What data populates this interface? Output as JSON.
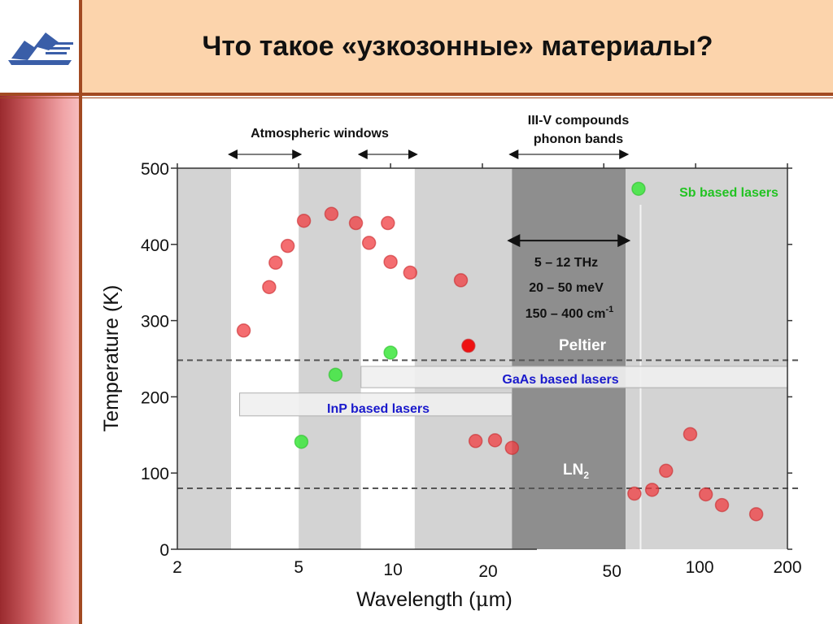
{
  "slide": {
    "title": "Что такое «узкозонные» материалы?"
  },
  "annotations": {
    "atmospheric_windows": "Atmospheric windows",
    "phonon_line1": "III-V compounds",
    "phonon_line2": "phonon bands",
    "thz": "5 – 12 THz",
    "mev": "20 – 50 meV",
    "cm_main": "150 – 400 cm",
    "cm_sup": "-1",
    "peltier": "Peltier",
    "ln2_main": "LN",
    "ln2_sub": "2",
    "sb_lasers": "Sb based lasers",
    "gaas_lasers": "GaAs based lasers",
    "inp_lasers": "InP based lasers"
  },
  "colors": {
    "red_points": "#e8474a",
    "green_points": "#4fe04f",
    "sb_label": "#22c322",
    "laser_label": "#1a1acc",
    "band_light": "#d3d3d3",
    "band_dark": "#8e8e8e",
    "band_white": "#ffffff"
  },
  "chart_data": {
    "type": "scatter",
    "x_scale": "log",
    "xlabel_main": "Wavelength (",
    "xlabel_mu": "μ",
    "xlabel_end": "m)",
    "ylabel": "Temperature (K)",
    "xlim": [
      2,
      200
    ],
    "ylim": [
      0,
      500
    ],
    "x_ticks": [
      {
        "value": 2,
        "label": "2"
      },
      {
        "value": 5,
        "label": "5"
      },
      {
        "value": 10,
        "label": "10"
      },
      {
        "value": 20,
        "label": "20"
      },
      {
        "value": 50,
        "label": "50"
      },
      {
        "value": 100,
        "label": "100"
      },
      {
        "value": 200,
        "label": "200"
      }
    ],
    "y_ticks": [
      0,
      100,
      200,
      300,
      400,
      500
    ],
    "bands": [
      {
        "from": 2,
        "to": 3,
        "fill": "light"
      },
      {
        "from": 3,
        "to": 5,
        "fill": "white"
      },
      {
        "from": 5,
        "to": 8,
        "fill": "light"
      },
      {
        "from": 8,
        "to": 12,
        "fill": "white"
      },
      {
        "from": 12,
        "to": 25,
        "fill": "light"
      },
      {
        "from": 25,
        "to": 59,
        "fill": "dark"
      },
      {
        "from": 59,
        "to": 200,
        "fill": "light"
      }
    ],
    "reference_lines": [
      {
        "name": "Peltier",
        "y": 248
      },
      {
        "name": "LN2",
        "y": 80
      }
    ],
    "ranges": [
      {
        "name": "atmospheric-window-1",
        "from": 3,
        "to": 5,
        "y": 518
      },
      {
        "name": "atmospheric-window-2",
        "from": 8,
        "to": 12,
        "y": 518
      },
      {
        "name": "phonon-bands",
        "from": 25,
        "to": 59,
        "y": 518
      },
      {
        "name": "thz-range",
        "from": 25,
        "to": 59,
        "y": 405
      }
    ],
    "shaded_boxes": [
      {
        "name": "gaas-box",
        "x_from": 8,
        "x_to": 200,
        "y_from": 212,
        "y_to": 240
      },
      {
        "name": "inp-box",
        "x_from": 3.2,
        "x_to": 25,
        "y_from": 175,
        "y_to": 205
      }
    ],
    "series": [
      {
        "color": "red",
        "points": [
          {
            "x": 3.3,
            "y": 287
          },
          {
            "x": 4.0,
            "y": 344
          },
          {
            "x": 4.2,
            "y": 376
          },
          {
            "x": 4.6,
            "y": 398
          },
          {
            "x": 5.2,
            "y": 431
          },
          {
            "x": 6.4,
            "y": 440
          },
          {
            "x": 7.7,
            "y": 428
          },
          {
            "x": 8.5,
            "y": 402
          },
          {
            "x": 9.8,
            "y": 428
          },
          {
            "x": 10.0,
            "y": 377
          },
          {
            "x": 11.6,
            "y": 363
          },
          {
            "x": 17.0,
            "y": 353
          },
          {
            "x": 18.0,
            "y": 267
          },
          {
            "x": 19.0,
            "y": 142
          },
          {
            "x": 22.0,
            "y": 143
          },
          {
            "x": 25.0,
            "y": 133
          },
          {
            "x": 63.0,
            "y": 73
          },
          {
            "x": 72.0,
            "y": 78
          },
          {
            "x": 80.0,
            "y": 103
          },
          {
            "x": 96.0,
            "y": 151
          },
          {
            "x": 108.0,
            "y": 72
          },
          {
            "x": 122.0,
            "y": 58
          },
          {
            "x": 158.0,
            "y": 46
          }
        ]
      },
      {
        "color": "green",
        "points": [
          {
            "x": 5.1,
            "y": 141
          },
          {
            "x": 6.6,
            "y": 229
          },
          {
            "x": 10.0,
            "y": 258
          },
          {
            "x": 65.0,
            "y": 473
          }
        ]
      }
    ]
  }
}
